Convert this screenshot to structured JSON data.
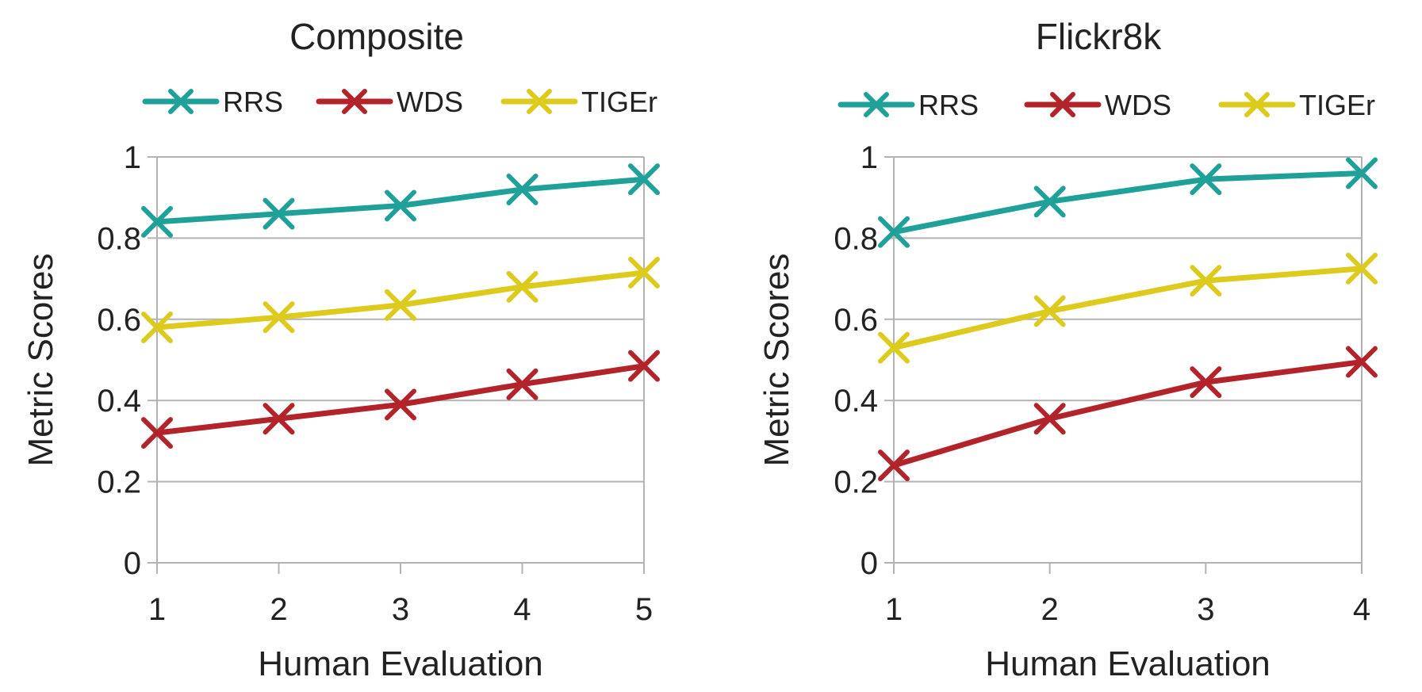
{
  "colors": {
    "RRS": "#1fa19a",
    "WDS": "#b3232a",
    "TIGEr": "#dccb1c"
  },
  "chart_data": [
    {
      "type": "line",
      "title": "Composite",
      "xlabel": "Human Evaluation",
      "ylabel": "Metric Scores",
      "x": [
        1,
        2,
        3,
        4,
        5
      ],
      "xticks": [
        "1",
        "2",
        "3",
        "4",
        "5"
      ],
      "ylim": [
        0,
        1
      ],
      "yticks": [
        "0",
        "0.2",
        "0.4",
        "0.6",
        "0.8",
        "1"
      ],
      "legend_position": "top",
      "series": [
        {
          "name": "RRS",
          "values": [
            0.84,
            0.86,
            0.88,
            0.92,
            0.945
          ]
        },
        {
          "name": "WDS",
          "values": [
            0.32,
            0.355,
            0.39,
            0.44,
            0.485
          ]
        },
        {
          "name": "TIGEr",
          "values": [
            0.58,
            0.605,
            0.635,
            0.68,
            0.715
          ]
        }
      ]
    },
    {
      "type": "line",
      "title": "Flickr8k",
      "xlabel": "Human Evaluation",
      "ylabel": "Metric Scores",
      "x": [
        1,
        2,
        3,
        4
      ],
      "xticks": [
        "1",
        "2",
        "3",
        "4"
      ],
      "ylim": [
        0,
        1
      ],
      "yticks": [
        "0",
        "0.2",
        "0.4",
        "0.6",
        "0.8",
        "1"
      ],
      "legend_position": "top",
      "series": [
        {
          "name": "RRS",
          "values": [
            0.815,
            0.89,
            0.945,
            0.96
          ]
        },
        {
          "name": "WDS",
          "values": [
            0.24,
            0.355,
            0.445,
            0.495
          ]
        },
        {
          "name": "TIGEr",
          "values": [
            0.53,
            0.62,
            0.695,
            0.725
          ]
        }
      ]
    }
  ]
}
